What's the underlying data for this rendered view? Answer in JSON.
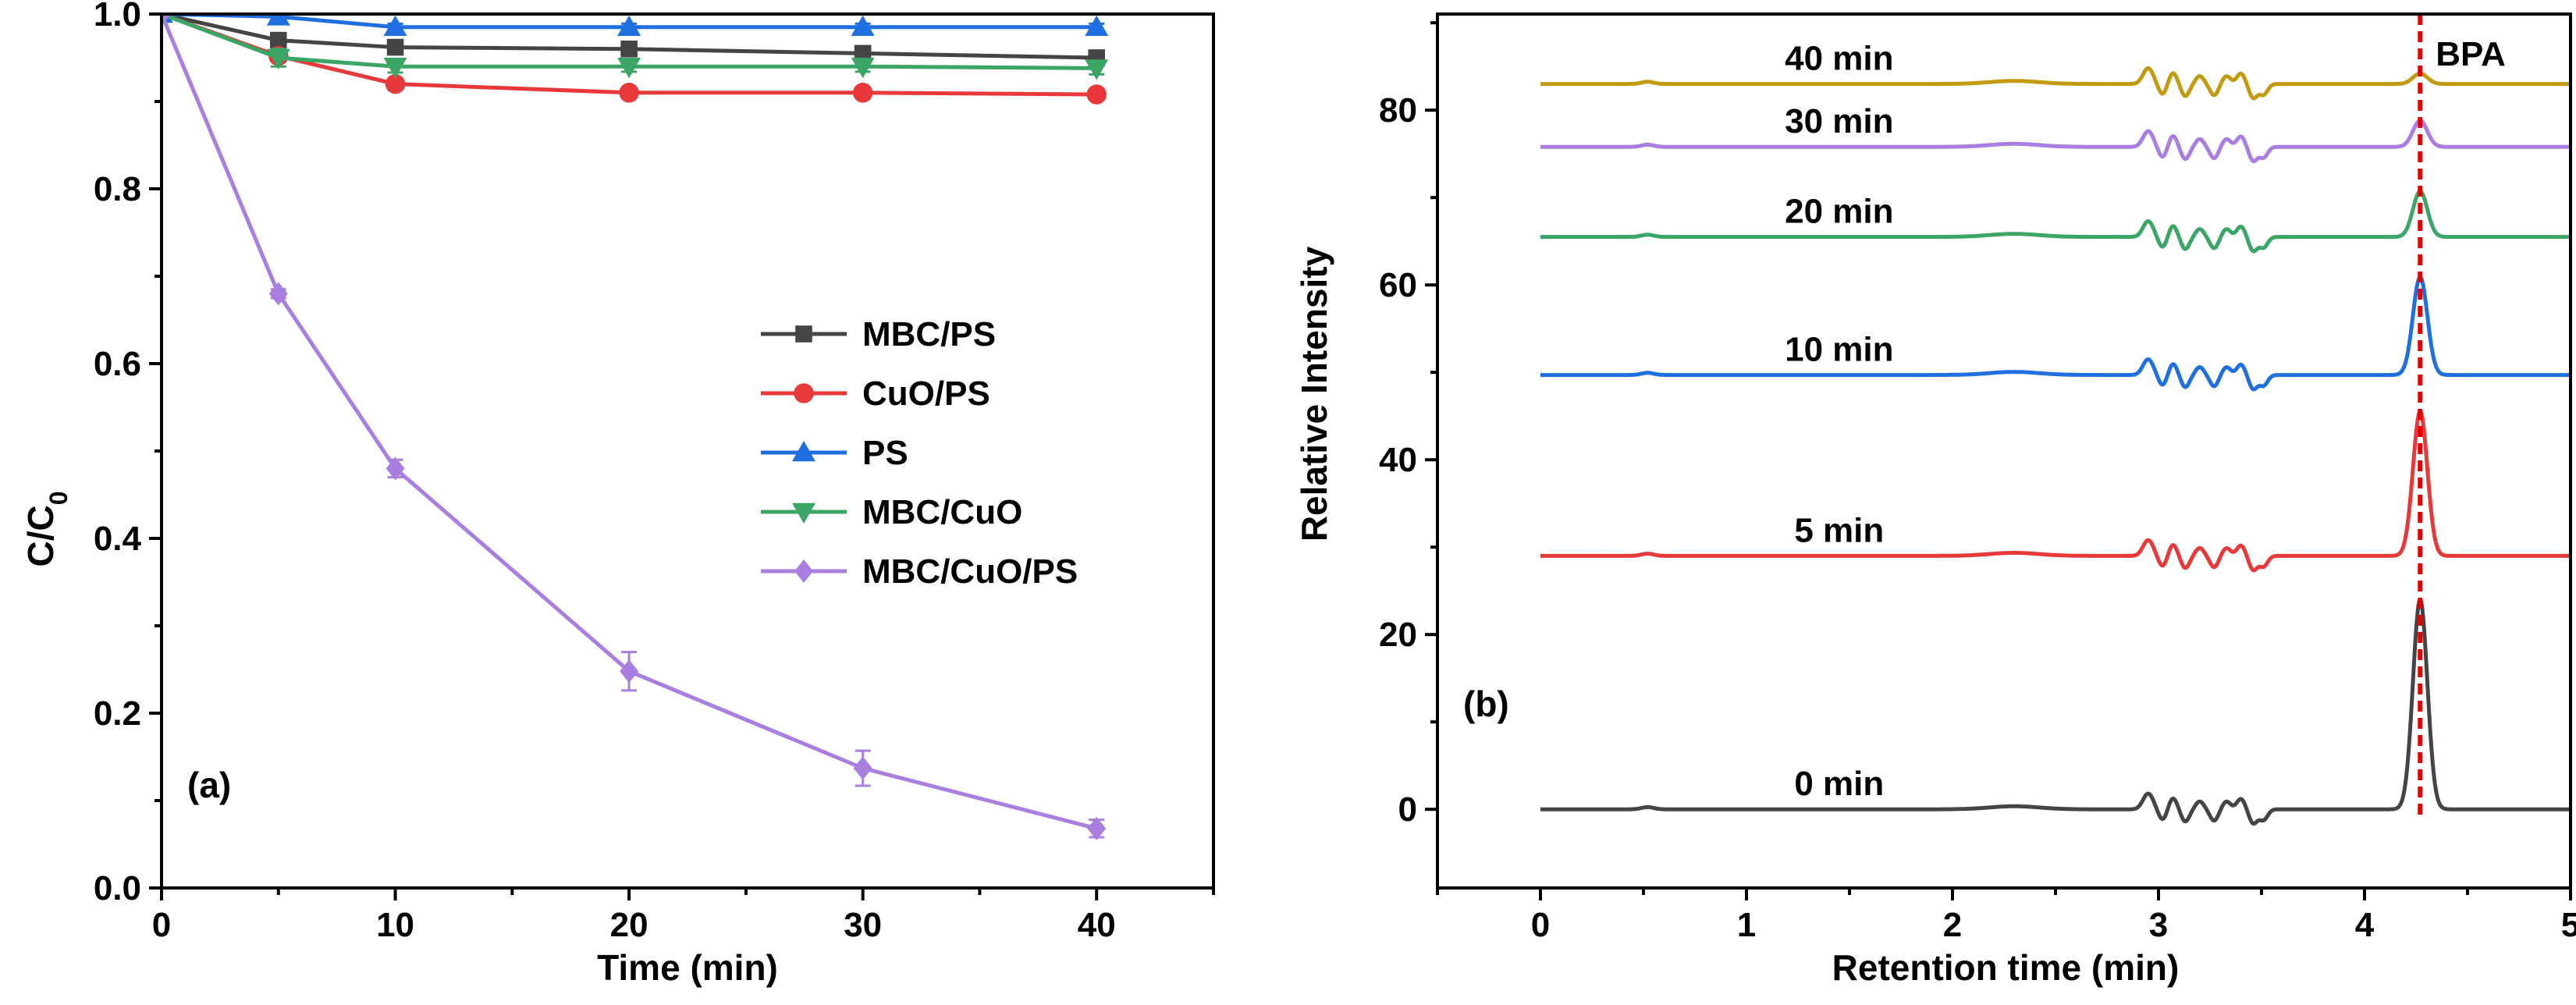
{
  "colors": {
    "gray": "#444444",
    "red": "#e8393a",
    "blue": "#1f6fe0",
    "green": "#3aa565",
    "purple": "#a87ee0",
    "gold": "#c39b12",
    "marker_line": "#e60000"
  },
  "chart_data": [
    {
      "type": "line",
      "panel_label": "(a)",
      "xlabel": "Time (min)",
      "ylabel": "C/C",
      "ylabel_sub": "0",
      "xlim": [
        0,
        45
      ],
      "ylim": [
        0,
        1.0
      ],
      "x_ticks": [
        0,
        10,
        20,
        30,
        40
      ],
      "y_ticks": [
        0.0,
        0.2,
        0.4,
        0.6,
        0.8,
        1.0
      ],
      "y_tick_labels": [
        "0.0",
        "0.2",
        "0.4",
        "0.6",
        "0.8",
        "1.0"
      ],
      "legend_position": "center-right",
      "x": [
        0,
        5,
        10,
        20,
        30,
        40
      ],
      "series": [
        {
          "name": "MBC/PS",
          "marker": "square",
          "color": "#444444",
          "values": [
            1.0,
            0.97,
            0.962,
            0.96,
            0.955,
            0.95
          ],
          "errors": [
            0,
            0.005,
            0.005,
            0.005,
            0.006,
            0.006
          ]
        },
        {
          "name": "CuO/PS",
          "marker": "circle",
          "color": "#e8393a",
          "values": [
            1.0,
            0.952,
            0.92,
            0.91,
            0.91,
            0.908
          ],
          "errors": [
            0,
            0.005,
            0.006,
            0.006,
            0.006,
            0.006
          ]
        },
        {
          "name": "PS",
          "marker": "triangle-up",
          "color": "#1f6fe0",
          "values": [
            1.0,
            0.997,
            0.985,
            0.985,
            0.985,
            0.985
          ],
          "errors": [
            0,
            0.004,
            0.004,
            0.004,
            0.004,
            0.004
          ]
        },
        {
          "name": "MBC/CuO",
          "marker": "triangle-down",
          "color": "#3aa565",
          "values": [
            1.0,
            0.95,
            0.94,
            0.94,
            0.94,
            0.938
          ],
          "errors": [
            0,
            0.01,
            0.007,
            0.006,
            0.006,
            0.007
          ]
        },
        {
          "name": "MBC/CuO/PS",
          "marker": "diamond",
          "color": "#a87ee0",
          "values": [
            1.0,
            0.68,
            0.48,
            0.248,
            0.137,
            0.068
          ],
          "errors": [
            0,
            0.005,
            0.01,
            0.022,
            0.02,
            0.01
          ]
        }
      ]
    },
    {
      "type": "line",
      "panel_label": "(b)",
      "xlabel": "Retention time (min)",
      "ylabel": "Relative Intensity",
      "xlim": [
        -0.5,
        5.0
      ],
      "ylim": [
        -9,
        91
      ],
      "x_ticks": [
        0,
        1,
        2,
        3,
        4,
        5
      ],
      "y_ticks": [
        0,
        20,
        40,
        60,
        80
      ],
      "annotation": {
        "text": "BPA",
        "x": 4.27
      },
      "series": [
        {
          "name": "0 min",
          "color": "#444444",
          "baseline": 0,
          "peak_height": 24
        },
        {
          "name": "5 min",
          "color": "#e8393a",
          "baseline": 29,
          "peak_height": 16.5
        },
        {
          "name": "10 min",
          "color": "#1f6fe0",
          "baseline": 49.7,
          "peak_height": 11.2
        },
        {
          "name": "20 min",
          "color": "#3aa565",
          "baseline": 65.5,
          "peak_height": 5.2
        },
        {
          "name": "30 min",
          "color": "#a87ee0",
          "baseline": 75.8,
          "peak_height": 3.0
        },
        {
          "name": "40 min",
          "color": "#c39b12",
          "baseline": 83.0,
          "peak_height": 1.2
        }
      ]
    }
  ]
}
